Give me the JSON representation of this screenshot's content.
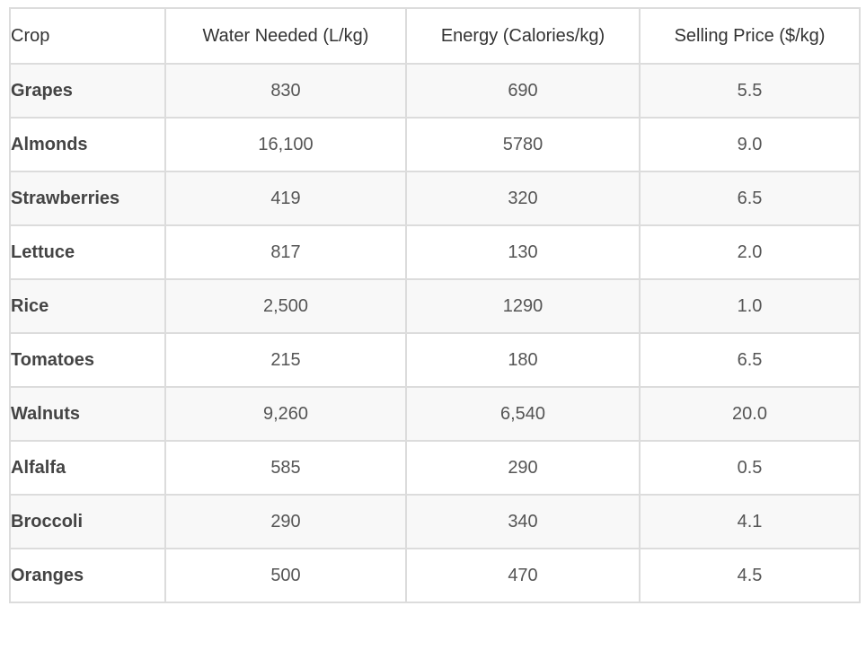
{
  "table": {
    "headers": [
      "Crop",
      "Water Needed (L/kg)",
      "Energy (Calories/kg)",
      "Selling Price ($/kg)"
    ],
    "rows": [
      [
        "Grapes",
        "830",
        "690",
        "5.5"
      ],
      [
        "Almonds",
        "16,100",
        "5780",
        "9.0"
      ],
      [
        "Strawberries",
        "419",
        "320",
        "6.5"
      ],
      [
        "Lettuce",
        "817",
        "130",
        "2.0"
      ],
      [
        "Rice",
        "2,500",
        "1290",
        "1.0"
      ],
      [
        "Tomatoes",
        "215",
        "180",
        "6.5"
      ],
      [
        "Walnuts",
        "9,260",
        "6,540",
        "20.0"
      ],
      [
        "Alfalfa",
        "585",
        "290",
        "0.5"
      ],
      [
        "Broccoli",
        "290",
        "340",
        "4.1"
      ],
      [
        "Oranges",
        "500",
        "470",
        "4.5"
      ]
    ]
  },
  "colors": {
    "border": "#dcdcdc",
    "stripe": "#f8f8f8",
    "header_text": "#333333",
    "crop_text": "#444444",
    "value_text": "#555555"
  }
}
